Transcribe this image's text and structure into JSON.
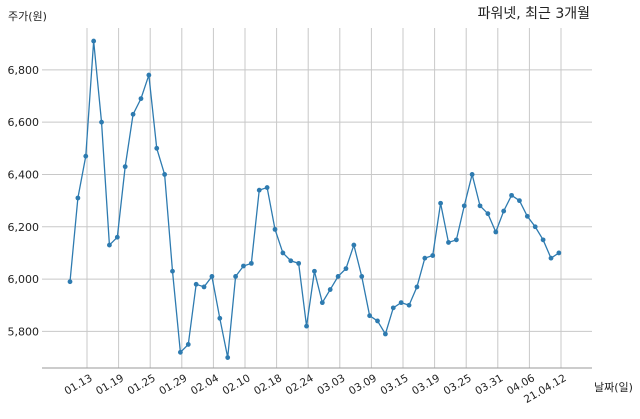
{
  "chart_data": {
    "type": "line",
    "title": "파워넷, 최근 3개월",
    "xlabel": "날짜(일)",
    "ylabel": "주가(원)",
    "x_tick_labels": [
      "01.13",
      "01.19",
      "01.25",
      "01.29",
      "02.04",
      "02.10",
      "02.18",
      "02.24",
      "03.03",
      "03.09",
      "03.15",
      "03.19",
      "03.25",
      "03.31",
      "04.06",
      "21.04.12"
    ],
    "y_tick_labels": [
      "5,800",
      "6,000",
      "6,200",
      "6,400",
      "6,600",
      "6,800"
    ],
    "y_ticks": [
      5800,
      6000,
      6200,
      6400,
      6600,
      6800
    ],
    "ylim": [
      5660,
      6960
    ],
    "grid": true,
    "line_color": "#2e7bb0",
    "series": [
      {
        "values": [
          5990,
          6310,
          6470,
          6910,
          6600,
          6130,
          6160,
          6430,
          6630,
          6690,
          6780,
          6500,
          6400,
          6030,
          5720,
          5750,
          5980,
          5970,
          6010,
          5850,
          5700,
          6010,
          6050,
          6060,
          6340,
          6350,
          6190,
          6100,
          6070,
          6060,
          5820,
          6030,
          5910,
          5960,
          6010,
          6040,
          6130,
          6010,
          5860,
          5840,
          5790,
          5890,
          5910,
          5900,
          5970,
          6080,
          6090,
          6290,
          6140,
          6150,
          6280,
          6400,
          6280,
          6250,
          6180,
          6260,
          6320,
          6300,
          6240,
          6200,
          6150,
          6080,
          6100
        ]
      }
    ]
  }
}
